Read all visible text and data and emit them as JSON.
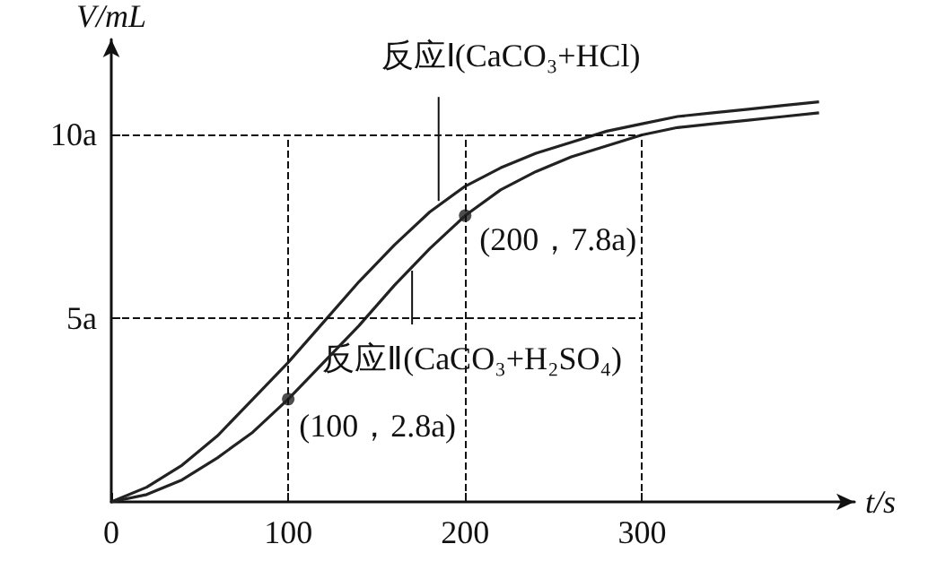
{
  "chart_data": {
    "type": "line",
    "xlabel": "t/s",
    "ylabel": "V/mL",
    "xlim": [
      0,
      420
    ],
    "ylim": [
      0,
      12.6
    ],
    "xticks": [
      0,
      100,
      200,
      300
    ],
    "yticks": [
      {
        "value": 5,
        "label": "5a"
      },
      {
        "value": 10,
        "label": "10a"
      }
    ],
    "series": [
      {
        "color": "#222222",
        "x": [
          0,
          20,
          40,
          60,
          80,
          100,
          120,
          140,
          160,
          180,
          200,
          220,
          240,
          260,
          280,
          300,
          320,
          340,
          360,
          380,
          400
        ],
        "values": [
          0,
          0.4,
          1,
          1.8,
          2.8,
          3.8,
          4.9,
          6,
          7,
          7.9,
          8.6,
          9.1,
          9.5,
          9.8,
          10.1,
          10.3,
          10.5,
          10.6,
          10.7,
          10.8,
          10.9
        ]
      },
      {
        "color": "#222222",
        "x": [
          0,
          20,
          40,
          60,
          80,
          100,
          120,
          140,
          160,
          180,
          200,
          220,
          240,
          260,
          280,
          300,
          320,
          340,
          360,
          380,
          400
        ],
        "values": [
          0,
          0.2,
          0.6,
          1.2,
          1.9,
          2.8,
          3.8,
          4.8,
          5.9,
          6.9,
          7.8,
          8.5,
          9,
          9.4,
          9.7,
          10,
          10.2,
          10.3,
          10.4,
          10.5,
          10.6
        ]
      },
      {
        "type": "scatter",
        "color": "#222222",
        "marker": "circle",
        "x": [
          100,
          200
        ],
        "values": [
          2.8,
          7.8
        ]
      }
    ],
    "ref_lines": [
      {
        "axis": "x",
        "value": 100,
        "line_style": "dashed"
      },
      {
        "axis": "x",
        "value": 200,
        "line_style": "dashed"
      },
      {
        "axis": "x",
        "value": 300,
        "line_style": "dashed"
      },
      {
        "axis": "y",
        "value": 5,
        "line_style": "dashed"
      },
      {
        "axis": "y",
        "value": 10,
        "line_style": "dashed"
      }
    ],
    "annotations": [
      {
        "text": "反应Ⅰ(CaCO₃+HCl)",
        "x": 185,
        "y": 8.2
      },
      {
        "text": "反应Ⅱ(CaCO₃+H₂SO₄)",
        "x": 170,
        "y": 6.3
      },
      {
        "text": "(200，7.8a)",
        "x": 200,
        "y": 7.8
      },
      {
        "text": "(100，2.8a)",
        "x": 100,
        "y": 2.8
      }
    ],
    "grid": false,
    "marker": "none",
    "line_style": "solid"
  }
}
